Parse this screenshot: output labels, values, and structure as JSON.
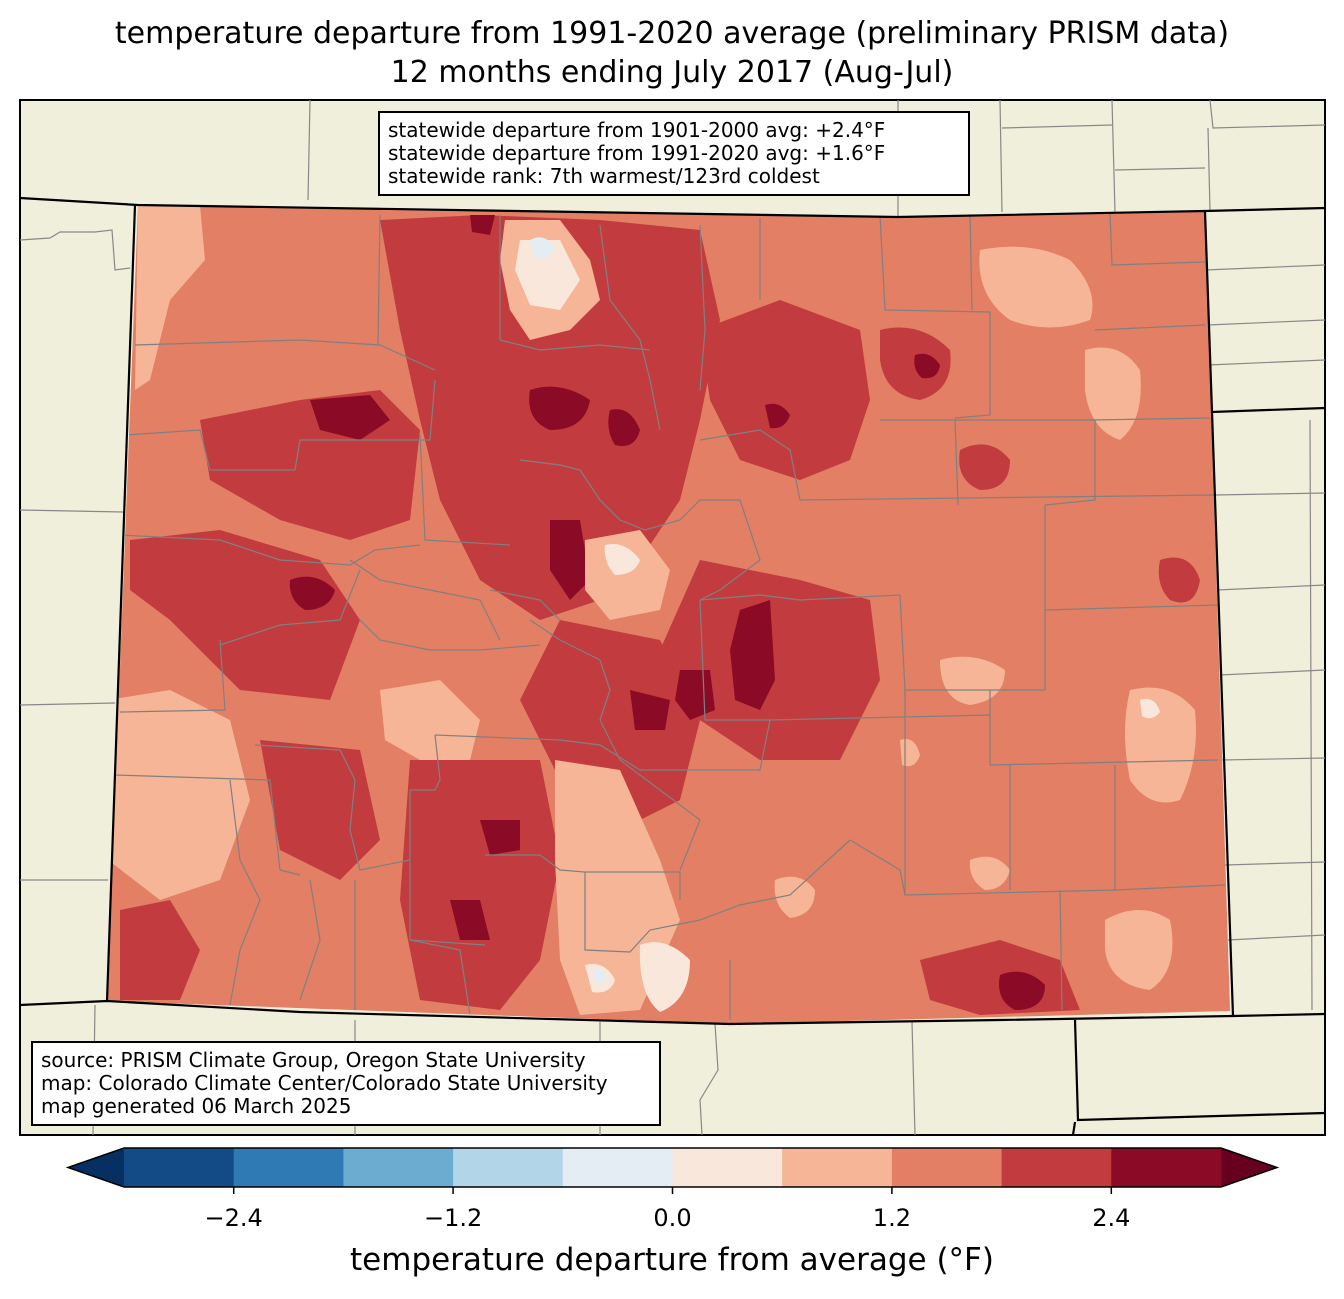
{
  "title": {
    "line1": "temperature departure from 1991-2020 average (preliminary PRISM data)",
    "line2": "12 months ending July 2017 (Aug-Jul)"
  },
  "stats_box": {
    "line1": "statewide departure from 1901-2000 avg: +2.4°F",
    "line2": "statewide departure from 1991-2020 avg: +1.6°F",
    "line3": "statewide rank: 7th warmest/123rd coldest"
  },
  "source_box": {
    "line1": "source: PRISM Climate Group, Oregon State University",
    "line2": "map: Colorado Climate Center/Colorado State University",
    "line3": "map generated 06 March 2025"
  },
  "colorbar": {
    "label": "temperature departure from average (°F)",
    "ticks": [
      "−2.4",
      "−1.2",
      "0.0",
      "1.2",
      "2.4"
    ],
    "tick_values": [
      -2.4,
      -1.2,
      0.0,
      1.2,
      2.4
    ],
    "bounds": [
      -3.0,
      -2.4,
      -1.8,
      -1.2,
      -0.6,
      0.0,
      0.6,
      1.2,
      1.8,
      2.4,
      3.0
    ],
    "colors": [
      "#134b86",
      "#2f79b5",
      "#6bacd0",
      "#b2d5e8",
      "#e3edf3",
      "#fae7dc",
      "#f6b596",
      "#e27f64",
      "#c23b3e",
      "#8b0a25"
    ],
    "under_color": "#053061",
    "over_color": "#67001f"
  },
  "colors": {
    "land": "#f0efdc",
    "base_fill": "#e27f64"
  }
}
